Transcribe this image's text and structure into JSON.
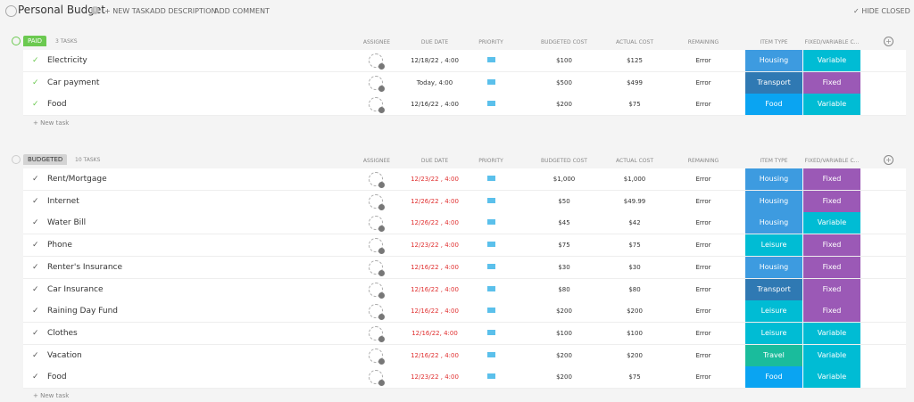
{
  "header": {
    "title": "Personal Budget",
    "actions": [
      "+ NEW TASK",
      "ADD DESCRIPTION",
      "ADD COMMENT"
    ],
    "hide_closed": "HIDE CLOSED"
  },
  "columns": [
    "ASSIGNEE",
    "DUE DATE",
    "PRIORITY",
    "BUDGETED COST",
    "ACTUAL COST",
    "REMAINING",
    "ITEM TYPE",
    "FIXED/VARIABLE C..."
  ],
  "new_task": "+ New task",
  "groups": [
    {
      "status": "PAID",
      "status_color": "#6bc950",
      "count": "3 TASKS",
      "rows": [
        {
          "name": "Electricity",
          "due": "12/18/22 , 4:00",
          "budgeted": "$100",
          "actual": "$125",
          "remaining": "Error",
          "item_type": "Housing",
          "item_color": "#3d9be0",
          "fv": "Variable",
          "fv_color": "#00bcd4"
        },
        {
          "name": "Car payment",
          "due": "Today, 4:00",
          "budgeted": "$500",
          "actual": "$499",
          "remaining": "Error",
          "item_type": "Transport",
          "item_color": "#2f79b3",
          "fv": "Fixed",
          "fv_color": "#9b59b6"
        },
        {
          "name": "Food",
          "due": "12/16/22 , 4:00",
          "budgeted": "$200",
          "actual": "$75",
          "remaining": "Error",
          "item_type": "Food",
          "item_color": "#0aa4f2",
          "fv": "Variable",
          "fv_color": "#00bcd4"
        }
      ]
    },
    {
      "status": "BUDGETED",
      "status_color": "#d3d3d3",
      "count": "10 TASKS",
      "rows": [
        {
          "name": "Rent/Mortgage",
          "due": "12/23/22 , 4:00",
          "budgeted": "$1,000",
          "actual": "$1,000",
          "remaining": "Error",
          "item_type": "Housing",
          "item_color": "#3d9be0",
          "fv": "Fixed",
          "fv_color": "#9b59b6"
        },
        {
          "name": "Internet",
          "due": "12/26/22 , 4:00",
          "budgeted": "$50",
          "actual": "$49.99",
          "remaining": "Error",
          "item_type": "Housing",
          "item_color": "#3d9be0",
          "fv": "Fixed",
          "fv_color": "#9b59b6"
        },
        {
          "name": "Water Bill",
          "due": "12/26/22 , 4:00",
          "budgeted": "$45",
          "actual": "$42",
          "remaining": "Error",
          "item_type": "Housing",
          "item_color": "#3d9be0",
          "fv": "Variable",
          "fv_color": "#00bcd4"
        },
        {
          "name": "Phone",
          "due": "12/23/22 , 4:00",
          "budgeted": "$75",
          "actual": "$75",
          "remaining": "Error",
          "item_type": "Leisure",
          "item_color": "#00bcd4",
          "fv": "Fixed",
          "fv_color": "#9b59b6"
        },
        {
          "name": "Renter's Insurance",
          "due": "12/16/22 , 4:00",
          "budgeted": "$30",
          "actual": "$30",
          "remaining": "Error",
          "item_type": "Housing",
          "item_color": "#3d9be0",
          "fv": "Fixed",
          "fv_color": "#9b59b6"
        },
        {
          "name": "Car Insurance",
          "due": "12/16/22 , 4:00",
          "budgeted": "$80",
          "actual": "$80",
          "remaining": "Error",
          "item_type": "Transport",
          "item_color": "#2f79b3",
          "fv": "Fixed",
          "fv_color": "#9b59b6"
        },
        {
          "name": "Raining Day Fund",
          "due": "12/16/22 , 4:00",
          "budgeted": "$200",
          "actual": "$200",
          "remaining": "Error",
          "item_type": "Leisure",
          "item_color": "#00bcd4",
          "fv": "Fixed",
          "fv_color": "#9b59b6"
        },
        {
          "name": "Clothes",
          "due": "12/16/22, 4:00",
          "budgeted": "$100",
          "actual": "$100",
          "remaining": "Error",
          "item_type": "Leisure",
          "item_color": "#00bcd4",
          "fv": "Variable",
          "fv_color": "#00bcd4"
        },
        {
          "name": "Vacation",
          "due": "12/16/22 , 4:00",
          "budgeted": "$200",
          "actual": "$200",
          "remaining": "Error",
          "item_type": "Travel",
          "item_color": "#1abc9c",
          "fv": "Variable",
          "fv_color": "#00bcd4"
        },
        {
          "name": "Food",
          "due": "12/23/22 , 4:00",
          "budgeted": "$200",
          "actual": "$75",
          "remaining": "Error",
          "item_type": "Food",
          "item_color": "#0aa4f2",
          "fv": "Variable",
          "fv_color": "#00bcd4"
        }
      ]
    }
  ]
}
